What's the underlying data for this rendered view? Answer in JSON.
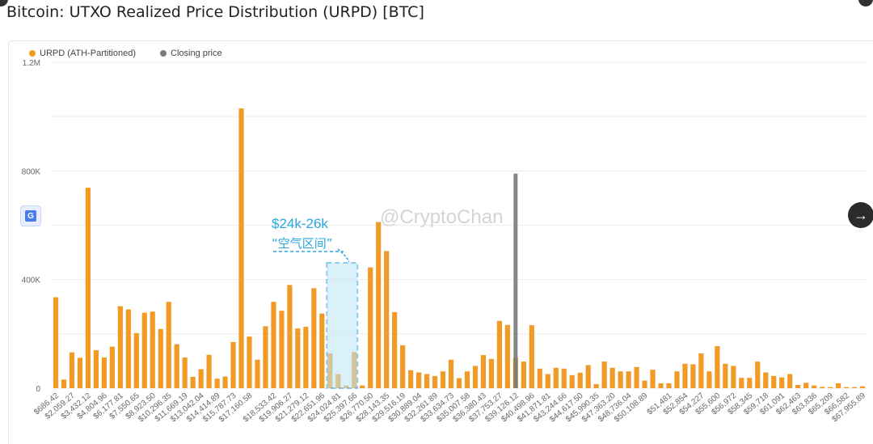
{
  "title": "Bitcoin: UTXO Realized Price Distribution (URPD) [BTC]",
  "legend": {
    "urpd": "URPD (ATH-Partitioned)",
    "closing": "Closing price"
  },
  "colors": {
    "bar": "#f29a26",
    "closing": "#7a7a7a",
    "annotation": "#29a7df"
  },
  "annotation": {
    "line1": "$24k-26k",
    "line2": "“空气区间”"
  },
  "watermark": "@CryptoChan",
  "icons": {
    "translate": "google-translate-icon",
    "next": "arrow-right-icon"
  },
  "chart_data": {
    "type": "bar",
    "ylim": [
      0,
      1200000
    ],
    "ytick_labels": [
      "0",
      "400K",
      "800K",
      "1.2M"
    ],
    "xtick_labels": [
      "$686.42",
      "$2,059.27",
      "$3,432.12",
      "$4,804.96",
      "$6,177.81",
      "$7,550.65",
      "$8,923.50",
      "$10,296.35",
      "$11,669.19",
      "$13,042.04",
      "$14,414.89",
      "$15,787.73",
      "$17,160.58",
      "$18,533.42",
      "$19,906.27",
      "$21,279.12",
      "$22,651.96",
      "$24,024.81",
      "$25,397.66",
      "$26,770.50",
      "$28,143.35",
      "$29,516.19",
      "$30,889.04",
      "$32,261.89",
      "$33,634.73",
      "$35,007.58",
      "$36,380.43",
      "$37,753.27",
      "$39,126.12",
      "$40,498.96",
      "$41,871.81",
      "$43,244.66",
      "$44,617.50",
      "$45,990.35",
      "$47,363.20",
      "$48,736.04",
      "$50,108.89",
      "$51,481",
      "$52,854",
      "$54,227",
      "$55,600",
      "$56,972",
      "$58,345",
      "$59,718",
      "$61,091",
      "$62,463",
      "$63,836",
      "$65,209",
      "$66,582",
      "$67,955.89"
    ],
    "closing_price_bin": 57,
    "values": [
      335000,
      32000,
      132000,
      112000,
      738000,
      140000,
      113000,
      153000,
      302000,
      290000,
      203000,
      278000,
      282000,
      218000,
      318000,
      162000,
      113000,
      42000,
      70000,
      123000,
      35000,
      43000,
      170000,
      1030000,
      190000,
      105000,
      228000,
      318000,
      285000,
      380000,
      220000,
      226000,
      368000,
      275000,
      128000,
      52000,
      10000,
      133000,
      10000,
      445000,
      612000,
      505000,
      280000,
      158000,
      66000,
      58000,
      52000,
      45000,
      62000,
      105000,
      37000,
      62000,
      82000,
      122000,
      108000,
      248000,
      233000,
      112000,
      98000,
      232000,
      72000,
      52000,
      75000,
      72000,
      48000,
      57000,
      85000,
      15000,
      98000,
      75000,
      62000,
      62000,
      78000,
      28000,
      68000,
      18000,
      18000,
      62000,
      90000,
      88000,
      128000,
      62000,
      155000,
      90000,
      82000,
      38000,
      38000,
      98000,
      58000,
      45000,
      40000,
      52000,
      12000,
      20000,
      10000,
      5000,
      4000,
      18000,
      4000,
      4000,
      7000
    ]
  }
}
